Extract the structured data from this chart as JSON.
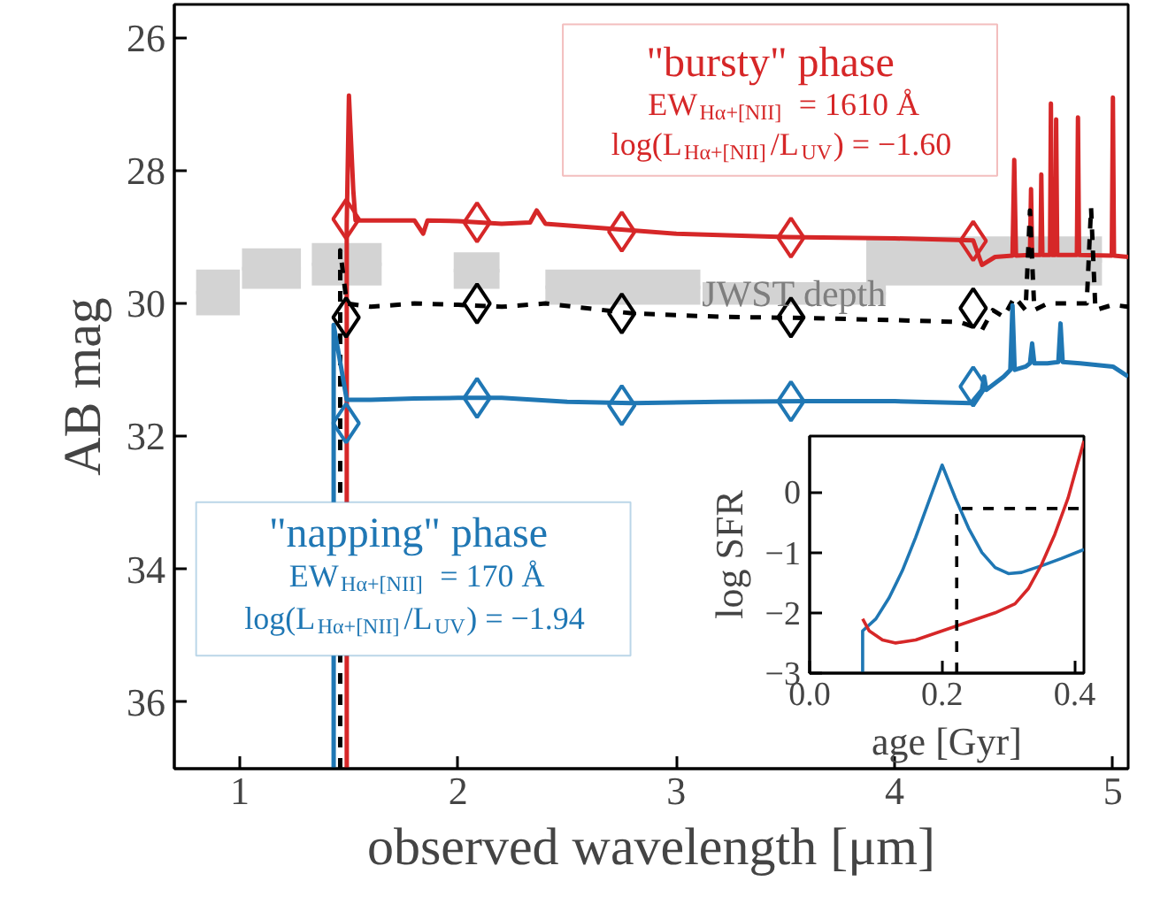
{
  "chart_data": [
    {
      "type": "line",
      "xlabel": "observed wavelength [μm]",
      "ylabel": "AB mag",
      "xlim": [
        0.7,
        5.07
      ],
      "ylim": [
        37.0,
        25.5
      ],
      "xticks": [
        1,
        2,
        3,
        4,
        5
      ],
      "yticks": [
        26,
        28,
        30,
        32,
        34,
        36
      ],
      "annotations": [
        "\"bursty\" phase",
        "EW$_{Hα+[NII]}$ = 1610 Å",
        "log(L$_{Hα+[NII]}$/L$_{UV}$) = −1.60",
        "\"napping\" phase",
        "EW$_{Hα+[NII]}$ = 170 Å",
        "log(L$_{Hα+[NII]}$/L$_{UV}$) = −1.94"
      ],
      "series": [
        {
          "name": "JWST depth",
          "type": "bar",
          "color": "#d3d3d3",
          "x": [
            0.9,
            1.145,
            1.49,
            2.085,
            2.755,
            3.54,
            4.41
          ],
          "xerrors": [
            0.1,
            0.135,
            0.16,
            0.105,
            0.355,
            0.42,
            0.54
          ],
          "base": [
            29.49,
            29.17,
            29.09,
            29.23,
            29.49,
            29.68,
            28.99
          ],
          "values": [
            0.69,
            0.61,
            0.64,
            0.55,
            0.53,
            0.34,
            0.74
          ]
        },
        {
          "type": "line",
          "color": "#d62728",
          "x": [
            1.49,
            1.49,
            1.5,
            1.52,
            1.53,
            1.6,
            1.8,
            1.84,
            1.86,
            2.0,
            2.2,
            2.33,
            2.36,
            2.4,
            2.6,
            3.0,
            3.5,
            4.0,
            4.36,
            4.4,
            4.46,
            4.54,
            4.548,
            4.556,
            4.62,
            4.625,
            4.63,
            4.668,
            4.672,
            4.677,
            4.712,
            4.716,
            4.72,
            4.736,
            4.74,
            4.745,
            4.835,
            4.84,
            4.845,
            4.995,
            5.0,
            5.005,
            5.07
          ],
          "values": [
            37.0,
            28.8,
            26.87,
            28.3,
            28.75,
            28.75,
            28.75,
            28.95,
            28.75,
            28.76,
            28.8,
            28.78,
            28.6,
            28.8,
            28.85,
            28.95,
            29.0,
            29.02,
            29.05,
            29.42,
            29.3,
            29.28,
            27.84,
            29.28,
            29.27,
            28.28,
            29.27,
            29.27,
            28.06,
            29.27,
            29.27,
            26.99,
            29.27,
            29.27,
            27.23,
            29.27,
            29.27,
            27.2,
            29.27,
            29.28,
            26.9,
            29.28,
            29.3
          ]
        },
        {
          "type": "line",
          "line_style": "dashed",
          "color": "#000000",
          "x": [
            1.46,
            1.46,
            1.49,
            1.6,
            1.8,
            2.0,
            2.2,
            2.4,
            2.8,
            3.2,
            3.6,
            4.0,
            4.3,
            4.4,
            4.45,
            4.5,
            4.55,
            4.6,
            4.62,
            4.64,
            4.7,
            4.8,
            4.88,
            4.9,
            4.92,
            5.0,
            5.07
          ],
          "values": [
            37.0,
            29.2,
            30.0,
            30.05,
            30.0,
            30.02,
            30.05,
            30.0,
            30.15,
            30.2,
            30.22,
            30.25,
            30.28,
            30.4,
            30.1,
            30.2,
            29.9,
            30.1,
            28.6,
            30.1,
            30.0,
            30.0,
            30.0,
            28.56,
            30.1,
            30.02,
            30.05
          ]
        },
        {
          "type": "line",
          "color": "#1f77b4",
          "x": [
            1.43,
            1.43,
            1.49,
            1.6,
            1.8,
            2.0,
            2.2,
            2.5,
            2.8,
            3.2,
            3.6,
            4.0,
            4.35,
            4.4,
            4.41,
            4.42,
            4.5,
            4.53,
            4.54,
            4.55,
            4.6,
            4.62,
            4.63,
            4.64,
            4.7,
            4.75,
            4.76,
            4.77,
            4.85,
            5.0,
            5.07
          ],
          "values": [
            37.0,
            30.32,
            31.45,
            31.45,
            31.43,
            31.42,
            31.42,
            31.48,
            31.5,
            31.48,
            31.47,
            31.47,
            31.5,
            31.3,
            31.1,
            31.3,
            31.1,
            31.0,
            30.03,
            31.0,
            30.95,
            30.9,
            30.6,
            30.9,
            30.9,
            30.88,
            30.3,
            30.88,
            30.9,
            30.95,
            31.1
          ]
        },
        {
          "type": "scatter",
          "marker": "diamond",
          "color": "#d62728",
          "x": [
            1.487,
            2.087,
            2.75,
            3.525,
            4.36
          ],
          "values": [
            28.73,
            28.78,
            28.92,
            29.01,
            29.06
          ]
        },
        {
          "type": "scatter",
          "marker": "diamond",
          "color": "#000000",
          "x": [
            1.487,
            2.087,
            2.75,
            3.525,
            4.36
          ],
          "values": [
            30.21,
            30.0,
            30.15,
            30.21,
            30.07
          ]
        },
        {
          "type": "scatter",
          "marker": "diamond",
          "color": "#1f77b4",
          "x": [
            1.487,
            2.087,
            2.75,
            3.525,
            4.36
          ],
          "values": [
            31.8,
            31.42,
            31.53,
            31.47,
            31.25
          ]
        }
      ]
    },
    {
      "type": "line",
      "xlabel": "age [Gyr]",
      "ylabel": "log SFR",
      "xlim": [
        0,
        0.414
      ],
      "ylim": [
        -3,
        0.93
      ],
      "xticks": [
        {
          "value": 0,
          "label": "0.0"
        },
        {
          "value": 0.2,
          "label": "0.2"
        },
        {
          "value": 0.4,
          "label": "0.4"
        }
      ],
      "yticks": [
        {
          "value": -3,
          "label": "−3"
        },
        {
          "value": -2,
          "label": "−2"
        },
        {
          "value": -1,
          "label": "−1"
        },
        0
      ],
      "series": [
        {
          "color": "#1f77b4",
          "x": [
            0.08,
            0.08,
            0.1,
            0.12,
            0.14,
            0.16,
            0.18,
            0.2,
            0.22,
            0.24,
            0.26,
            0.28,
            0.3,
            0.32,
            0.35,
            0.38,
            0.414
          ],
          "values": [
            -3,
            -2.3,
            -2.1,
            -1.75,
            -1.3,
            -0.75,
            -0.15,
            0.45,
            -0.1,
            -0.6,
            -1.0,
            -1.25,
            -1.35,
            -1.33,
            -1.22,
            -1.1,
            -0.95
          ]
        },
        {
          "color": "#d62728",
          "x": [
            0.08,
            0.09,
            0.11,
            0.13,
            0.16,
            0.2,
            0.24,
            0.28,
            0.31,
            0.33,
            0.35,
            0.37,
            0.39,
            0.414
          ],
          "values": [
            -2.1,
            -2.3,
            -2.45,
            -2.5,
            -2.45,
            -2.3,
            -2.15,
            -2.0,
            -1.85,
            -1.6,
            -1.2,
            -0.7,
            -0.1,
            0.85
          ]
        },
        {
          "color": "#000000",
          "line_style": "dashed",
          "x": [
            0.222,
            0.222,
            0.414
          ],
          "values": [
            -3,
            -0.27,
            -0.27
          ]
        }
      ]
    }
  ]
}
